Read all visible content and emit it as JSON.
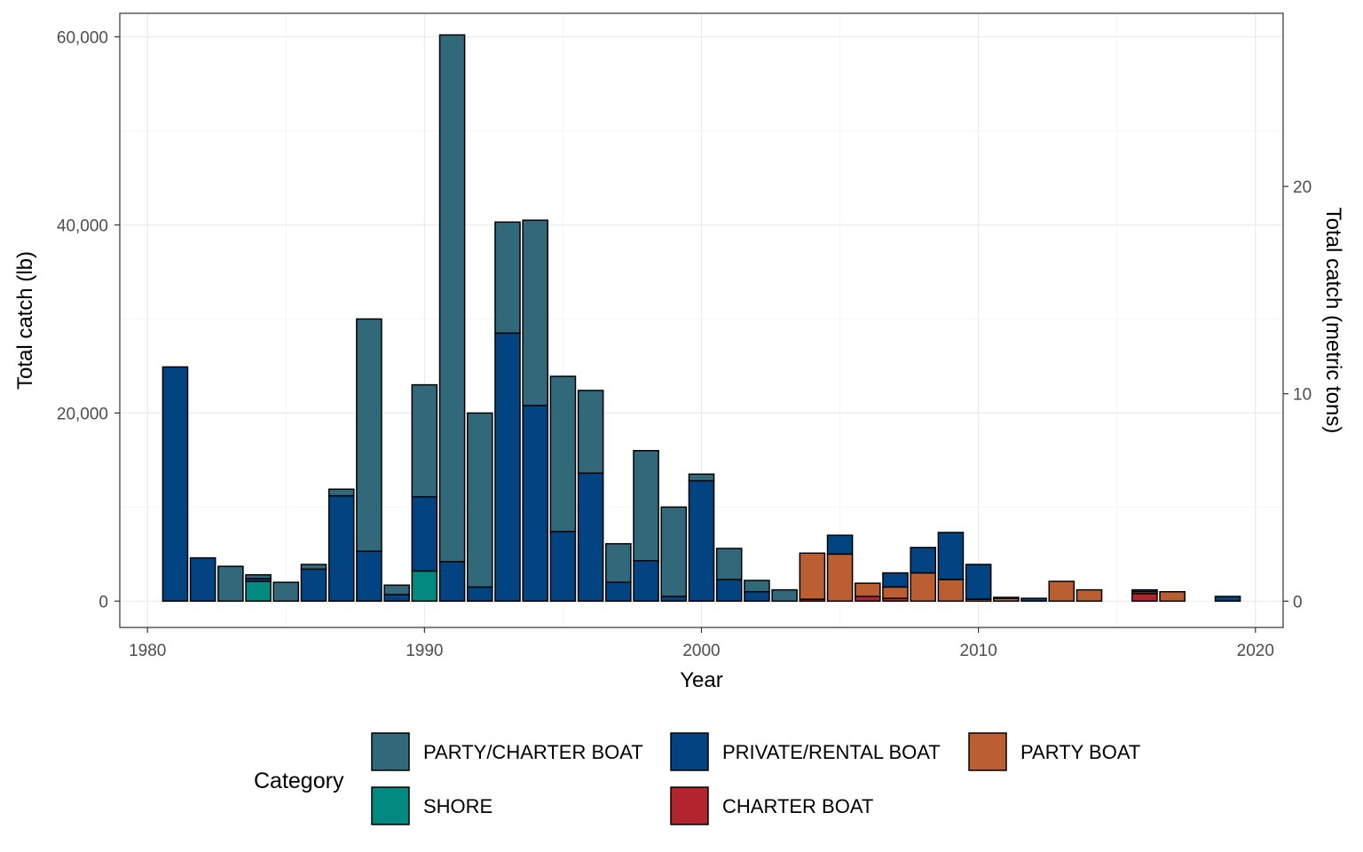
{
  "chart_data": {
    "type": "bar",
    "stacked": true,
    "xlabel": "Year",
    "ylabel": "Total catch (lb)",
    "y2label": "Total catch (metric tons)",
    "xlim": [
      1979,
      2021
    ],
    "ylim": [
      -2800,
      62500
    ],
    "y2lim": [
      -1.27,
      28.35
    ],
    "xticks": [
      1980,
      1990,
      2000,
      2010,
      2020
    ],
    "xtick_labels": [
      "1980",
      "1990",
      "2000",
      "2010",
      "2020"
    ],
    "yticks": [
      0,
      20000,
      40000,
      60000
    ],
    "ytick_labels": [
      "0",
      "20,000",
      "40,000",
      "60,000"
    ],
    "y2ticks": [
      0,
      10,
      20
    ],
    "y2tick_labels": [
      "0",
      "10",
      "20"
    ],
    "grid": true,
    "legend": {
      "title": "Category",
      "position": "bottom",
      "entries": [
        {
          "key": "party_charter",
          "label": "PARTY/CHARTER BOAT",
          "color": "#31697A"
        },
        {
          "key": "private_rental",
          "label": "PRIVATE/RENTAL BOAT",
          "color": "#024381"
        },
        {
          "key": "party",
          "label": "PARTY BOAT",
          "color": "#BB5E31"
        },
        {
          "key": "shore",
          "label": "SHORE",
          "color": "#028A80"
        },
        {
          "key": "charter",
          "label": "CHARTER BOAT",
          "color": "#B2242E"
        }
      ]
    },
    "series": [
      {
        "name": "PARTY/CHARTER BOAT",
        "key": "party_charter",
        "color": "#31697A",
        "points": [
          [
            1982,
            0
          ],
          [
            1983,
            3700
          ],
          [
            1984,
            400
          ],
          [
            1985,
            2000
          ],
          [
            1986,
            500
          ],
          [
            1987,
            700
          ],
          [
            1988,
            24700
          ],
          [
            1989,
            1000
          ],
          [
            1990,
            11900
          ],
          [
            1991,
            56000
          ],
          [
            1992,
            18500
          ],
          [
            1993,
            11800
          ],
          [
            1994,
            19700
          ],
          [
            1995,
            16500
          ],
          [
            1996,
            8800
          ],
          [
            1997,
            4100
          ],
          [
            1998,
            11700
          ],
          [
            1999,
            9500
          ],
          [
            2000,
            700
          ],
          [
            2001,
            3300
          ],
          [
            2002,
            1200
          ],
          [
            2003,
            1200
          ]
        ]
      },
      {
        "name": "PRIVATE/RENTAL BOAT",
        "key": "private_rental",
        "color": "#024381",
        "points": [
          [
            1981,
            24900
          ],
          [
            1982,
            4600
          ],
          [
            1984,
            300
          ],
          [
            1986,
            3400
          ],
          [
            1987,
            11200
          ],
          [
            1988,
            5300
          ],
          [
            1989,
            700
          ],
          [
            1990,
            7900
          ],
          [
            1991,
            4200
          ],
          [
            1992,
            1500
          ],
          [
            1993,
            28500
          ],
          [
            1994,
            20800
          ],
          [
            1995,
            7400
          ],
          [
            1996,
            13600
          ],
          [
            1997,
            2000
          ],
          [
            1998,
            4300
          ],
          [
            1999,
            500
          ],
          [
            2000,
            12800
          ],
          [
            2001,
            2300
          ],
          [
            2002,
            1000
          ],
          [
            2005,
            2000
          ],
          [
            2007,
            1500
          ],
          [
            2008,
            2700
          ],
          [
            2009,
            5000
          ],
          [
            2010,
            3700
          ],
          [
            2011,
            100
          ],
          [
            2012,
            300
          ],
          [
            2016,
            200
          ],
          [
            2019,
            500
          ]
        ]
      },
      {
        "name": "PARTY BOAT",
        "key": "party",
        "color": "#BB5E31",
        "points": [
          [
            2004,
            4900
          ],
          [
            2005,
            5000
          ],
          [
            2006,
            1400
          ],
          [
            2007,
            1200
          ],
          [
            2008,
            3000
          ],
          [
            2009,
            2300
          ],
          [
            2010,
            200
          ],
          [
            2011,
            300
          ],
          [
            2013,
            2100
          ],
          [
            2014,
            1200
          ],
          [
            2016,
            200
          ],
          [
            2017,
            1000
          ]
        ]
      },
      {
        "name": "SHORE",
        "key": "shore",
        "color": "#028A80",
        "points": [
          [
            1984,
            2100
          ],
          [
            1990,
            3200
          ]
        ]
      },
      {
        "name": "CHARTER BOAT",
        "key": "charter",
        "color": "#B2242E",
        "points": [
          [
            2004,
            200
          ],
          [
            2006,
            500
          ],
          [
            2007,
            300
          ],
          [
            2016,
            800
          ]
        ]
      }
    ],
    "stack_order_bottom_to_top": [
      "shore",
      "charter",
      "party",
      "private_rental",
      "party_charter"
    ]
  }
}
